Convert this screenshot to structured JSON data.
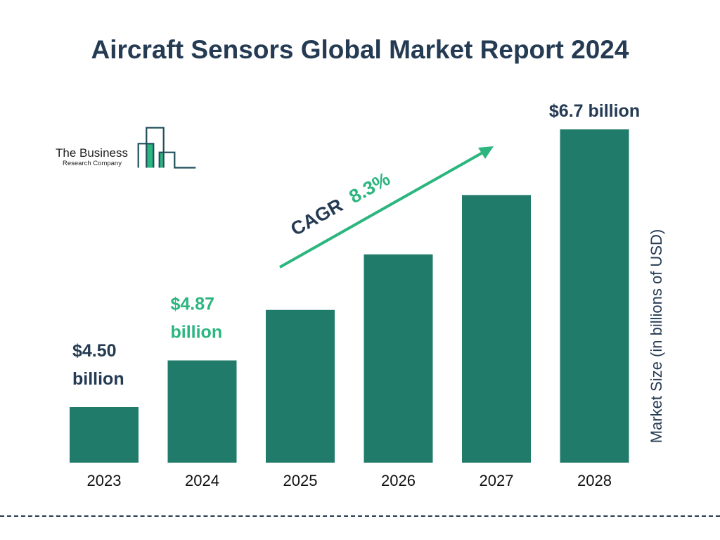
{
  "chart_data": {
    "type": "bar",
    "title": "Aircraft Sensors Global Market Report 2024",
    "categories": [
      "2023",
      "2024",
      "2025",
      "2026",
      "2027",
      "2028"
    ],
    "values": [
      4.5,
      4.87,
      5.27,
      5.71,
      6.18,
      6.7
    ],
    "data_labels": {
      "2023": [
        "$4.50",
        "billion"
      ],
      "2024": [
        "$4.87",
        "billion"
      ],
      "2028": [
        "$6.7 billion"
      ]
    },
    "ylabel": "Market Size (in billions of USD)",
    "xlabel": "",
    "annotation": {
      "prefix": "CAGR",
      "value": "8.3%"
    },
    "grid": false,
    "colors": {
      "bar": "#217b6b",
      "highlight": "#2bb57f",
      "text": "#243b53"
    }
  },
  "logo": {
    "line1": "The Business",
    "line2": "Research Company"
  }
}
